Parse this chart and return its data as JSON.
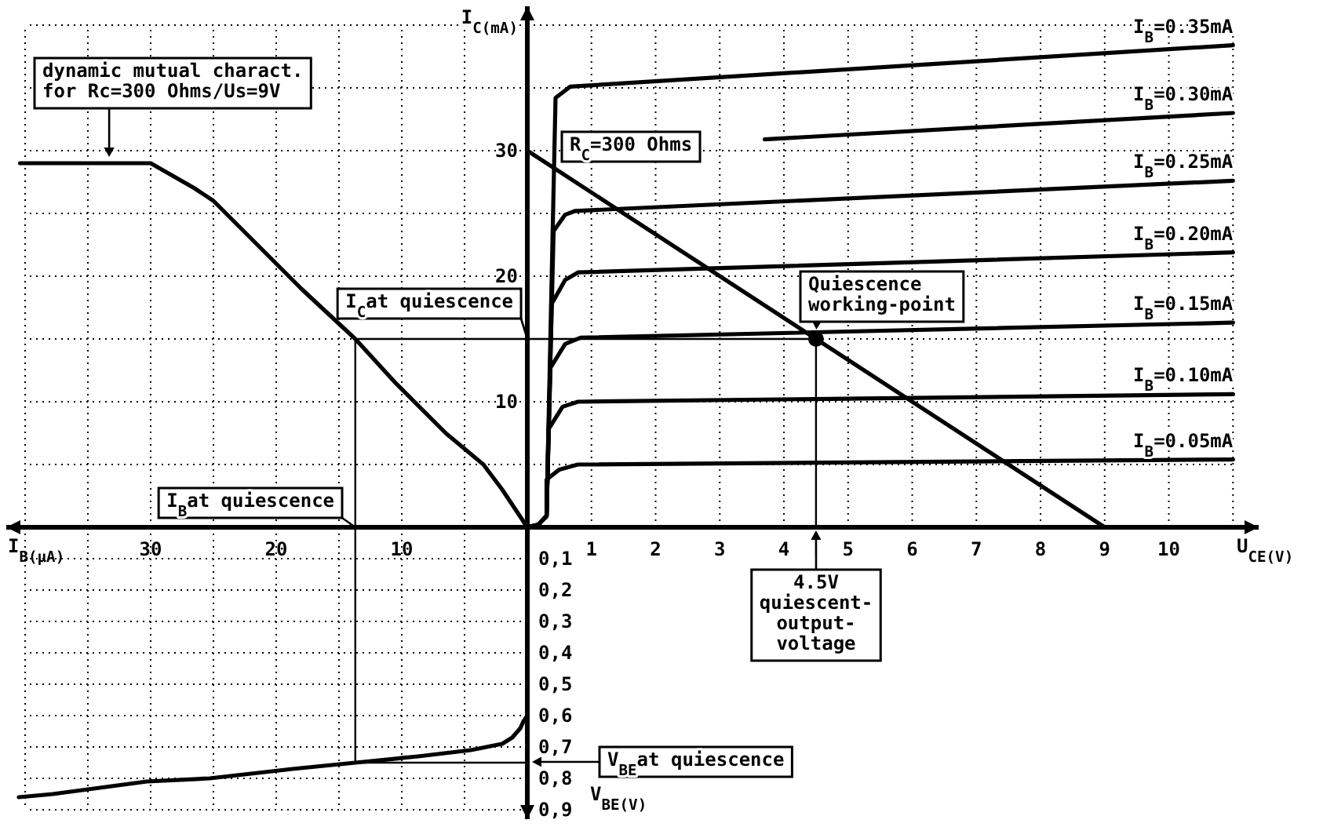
{
  "chart_data": [
    {
      "type": "line",
      "xlabel": "I$_{B(µA)}$",
      "xlim": [
        41.5,
        0
      ],
      "ylim": [
        0,
        40
      ],
      "xticks": [
        {
          "value": 5,
          "label": null
        },
        10,
        {
          "value": 15,
          "label": null
        },
        20,
        {
          "value": 25,
          "label": null
        },
        30,
        {
          "value": 35,
          "label": null
        },
        {
          "value": 40,
          "label": null
        }
      ],
      "yticks": [
        {
          "value": 5,
          "label": null
        },
        10,
        {
          "value": 15,
          "label": null
        },
        20,
        {
          "value": 25,
          "label": null
        },
        30,
        {
          "value": 35,
          "label": null
        },
        {
          "value": 40,
          "label": null
        }
      ],
      "grid": true,
      "tick_labels": "x",
      "series": [
        {
          "name": "dynamic mutual charact.\nfor Rc=300 Ohms/Us=9V",
          "color": "#000000",
          "x": [
            40.4,
            30,
            26.5,
            25,
            20.5,
            18,
            13.7,
            10.5,
            6.5,
            3.5,
            2,
            0
          ],
          "values": [
            29,
            29,
            27,
            26,
            21.5,
            19,
            15,
            11.5,
            7.5,
            5,
            3,
            0
          ]
        },
        {
          "color": "#000000",
          "x": [
            0,
            13.7,
            13.7
          ],
          "values": [
            15,
            15,
            0
          ]
        }
      ],
      "annotations": [
        {
          "text": "I$_{B}$at quiescence",
          "x": 13.7,
          "y": 0
        }
      ]
    },
    {
      "type": "line",
      "xlabel": "U$_{CE(V)}$",
      "ylabel": "I$_{C(mA)}$",
      "xlim": [
        0,
        11.4
      ],
      "ylim": [
        0,
        41.5
      ],
      "xticks": [
        1,
        2,
        3,
        4,
        5,
        6,
        7,
        8,
        9,
        10,
        {
          "value": 11,
          "label": null
        }
      ],
      "yticks": [
        {
          "value": 5,
          "label": null
        },
        10,
        {
          "value": 15,
          "label": null
        },
        20,
        {
          "value": 25,
          "label": null
        },
        30,
        {
          "value": 35,
          "label": null
        },
        {
          "value": 40,
          "label": null
        }
      ],
      "grid": true,
      "series": [
        {
          "name": "I$_{B}$=0.05mA",
          "color": "#000000",
          "x": [
            0,
            0.17,
            0.3,
            0.3,
            0.5,
            0.79,
            11
          ],
          "values": [
            0,
            0.2,
            0.9,
            3.8,
            4.6,
            5,
            5.4
          ]
        },
        {
          "name": "I$_{B}$=0.10mA",
          "color": "#000000",
          "x": [
            0,
            0.17,
            0.3,
            0.33,
            0.55,
            0.79,
            11
          ],
          "values": [
            0,
            0.2,
            0.9,
            7.8,
            9.6,
            10,
            10.6
          ]
        },
        {
          "name": "I$_{B}$=0.15mA",
          "color": "#000000",
          "x": [
            0,
            0.17,
            0.3,
            0.36,
            0.59,
            0.83,
            11
          ],
          "values": [
            0,
            0.2,
            0.9,
            12.7,
            14.6,
            15.1,
            16.3
          ]
        },
        {
          "name": "I$_{B}$=0.20mA",
          "color": "#000000",
          "x": [
            0,
            0.17,
            0.3,
            0.38,
            0.59,
            0.79,
            11
          ],
          "values": [
            0,
            0.2,
            0.9,
            17.8,
            19.7,
            20.3,
            21.9
          ]
        },
        {
          "name": "I$_{B}$=0.25mA",
          "color": "#000000",
          "x": [
            0,
            0.17,
            0.3,
            0.41,
            0.59,
            0.75,
            11
          ],
          "values": [
            0,
            0.2,
            0.9,
            23.6,
            24.9,
            25.2,
            27.6
          ]
        },
        {
          "name": "I$_{B}$=0.30mA",
          "color": "#000000",
          "x": [
            3.7,
            11
          ],
          "values": [
            30.9,
            33
          ]
        },
        {
          "name": "I$_{B}$=0.35mA",
          "color": "#000000",
          "x": [
            0,
            0.17,
            0.3,
            0.44,
            0.67,
            11
          ],
          "values": [
            0,
            0.2,
            0.9,
            34.2,
            35.1,
            38.4
          ]
        },
        {
          "name": "R$_{C}$=300 Ohms",
          "color": "#000000",
          "x": [
            0,
            9
          ],
          "values": [
            30,
            0
          ]
        },
        {
          "color": "#000000",
          "x": [
            0,
            4.5,
            4.5
          ],
          "values": [
            15,
            15,
            0
          ]
        },
        {
          "type": "scatter",
          "color": "#000000",
          "marker": "circle",
          "x": [
            4.5
          ],
          "values": [
            15
          ]
        }
      ],
      "annotations": [
        {
          "text": "I$_{C}$at quiescence",
          "x": 0,
          "y": 15
        },
        {
          "text": "Quiescence\nworking-point",
          "x": 4.5,
          "y": 15
        },
        {
          "text": "4.5V\nquiescent-\noutput-\nvoltage",
          "x": 4.5,
          "y": 0
        }
      ]
    },
    {
      "type": "line",
      "ylabel": "V$_{BE(V)}$",
      "xlim": [
        41.5,
        0
      ],
      "ylim": [
        0.93,
        0
      ],
      "xticks": [
        {
          "value": 5,
          "label": null
        },
        10,
        {
          "value": 15,
          "label": null
        },
        20,
        {
          "value": 25,
          "label": null
        },
        30,
        {
          "value": 35,
          "label": null
        },
        {
          "value": 40,
          "label": null
        }
      ],
      "yticks": [
        {
          "value": 0.1,
          "label": "0,1"
        },
        {
          "value": 0.2,
          "label": "0,2"
        },
        {
          "value": 0.3,
          "label": "0,3"
        },
        {
          "value": 0.4,
          "label": "0,4"
        },
        {
          "value": 0.5,
          "label": "0,5"
        },
        {
          "value": 0.6,
          "label": "0,6"
        },
        {
          "value": 0.7,
          "label": "0,7"
        },
        {
          "value": 0.8,
          "label": "0,8"
        },
        {
          "value": 0.9,
          "label": "0,9"
        }
      ],
      "grid": true,
      "tick_labels": "y",
      "series": [
        {
          "color": "#000000",
          "x": [
            0,
            0,
            0.33,
            0.55,
            1.2,
            2,
            4.5,
            8.7,
            13.7,
            18.7,
            25.3,
            30.3,
            37.8,
            40.5
          ],
          "values": [
            0,
            0.6,
            0.62,
            0.64,
            0.67,
            0.69,
            0.71,
            0.73,
            0.75,
            0.77,
            0.8,
            0.81,
            0.85,
            0.86
          ]
        },
        {
          "color": "#000000",
          "x": [
            13.7,
            13.7,
            0
          ],
          "values": [
            0,
            0.75,
            0.75
          ]
        }
      ],
      "annotations": [
        "V$_{BE}$at quiescence"
      ]
    }
  ]
}
